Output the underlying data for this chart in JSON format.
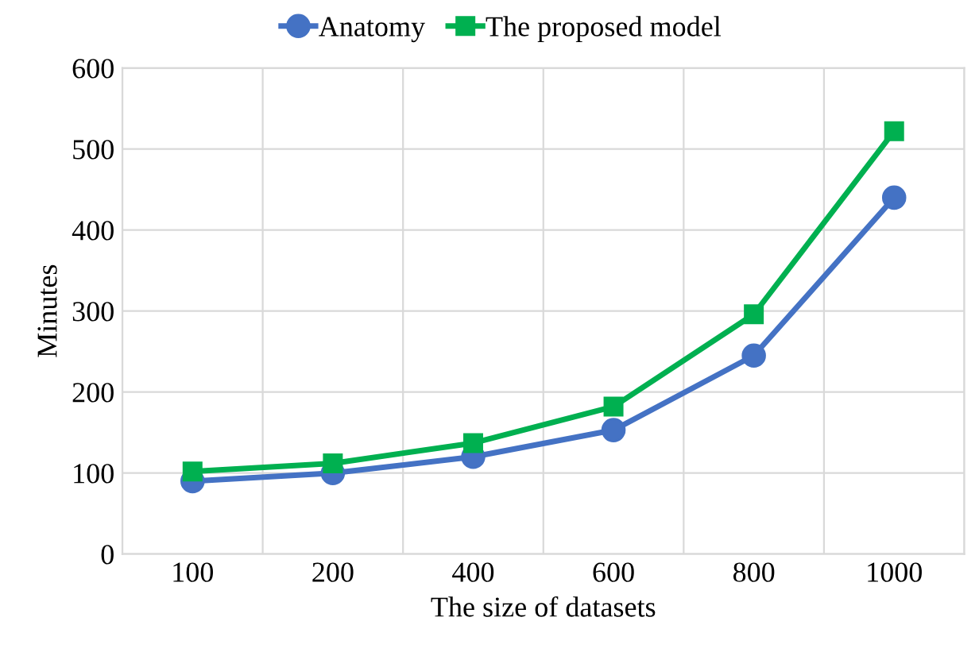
{
  "chart_data": {
    "type": "line",
    "xlabel": "The size of datasets",
    "ylabel": "Minutes",
    "categories": [
      "100",
      "200",
      "400",
      "600",
      "800",
      "1000"
    ],
    "series": [
      {
        "name": "Anatomy",
        "color": "#4472c4",
        "marker": "circle",
        "values": [
          90,
          100,
          120,
          153,
          245,
          440
        ]
      },
      {
        "name": "The proposed model",
        "color": "#00b050",
        "marker": "square",
        "values": [
          102,
          112,
          137,
          182,
          296,
          522
        ]
      }
    ],
    "ylim": [
      0,
      600
    ],
    "yticks": [
      0,
      100,
      200,
      300,
      400,
      500,
      600
    ],
    "grid": true,
    "legend": "top",
    "line_style": "solid"
  }
}
